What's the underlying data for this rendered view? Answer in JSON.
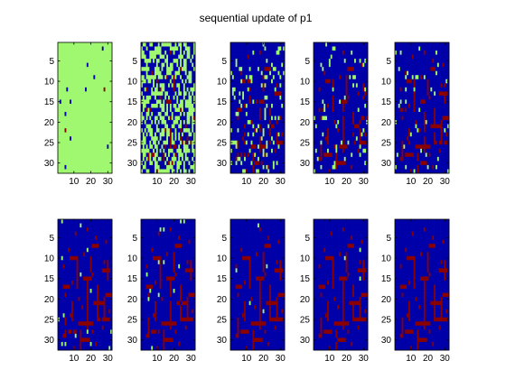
{
  "figure": {
    "title": "sequential update of p1"
  },
  "colors": {
    "background": "#0000A8",
    "highlight": "#A0F870",
    "edge": "#8A0000",
    "axis": "#000000",
    "figure_bg": "#ffffff"
  },
  "chart_data": {
    "type": "heatmap",
    "title": "sequential update of p1",
    "layout": "2 rows x 5 columns of panels",
    "x_ticks": [
      "10",
      "20",
      "30"
    ],
    "y_ticks": [
      "5",
      "10",
      "15",
      "20",
      "25",
      "30"
    ],
    "xlim": [
      0.5,
      32.5
    ],
    "ylim": [
      0.5,
      32.5
    ],
    "y_direction": "reversed",
    "value_colors": {
      "0": "#0000A8",
      "1": "#A0F870",
      "2": "#8A0000"
    },
    "panels": [
      {
        "index": 1,
        "description": "almost all green (1), a few blue (0) and dark-red (2) cells"
      },
      {
        "index": 2,
        "description": "roughly half green, half blue, scattered red"
      },
      {
        "index": 3,
        "description": "mostly blue, scattered green, red edge traces"
      },
      {
        "index": 4,
        "description": "mostly blue, fewer green, red edge traces"
      },
      {
        "index": 5,
        "description": "blue with red edge traces, rare green"
      },
      {
        "index": 6,
        "description": "blue with red edge traces, rare green"
      },
      {
        "index": 7,
        "description": "blue with red edge traces, rare green"
      },
      {
        "index": 8,
        "description": "blue with red edge traces"
      },
      {
        "index": 9,
        "description": "blue with red edge traces"
      },
      {
        "index": 10,
        "description": "blue with red edge traces"
      }
    ]
  }
}
